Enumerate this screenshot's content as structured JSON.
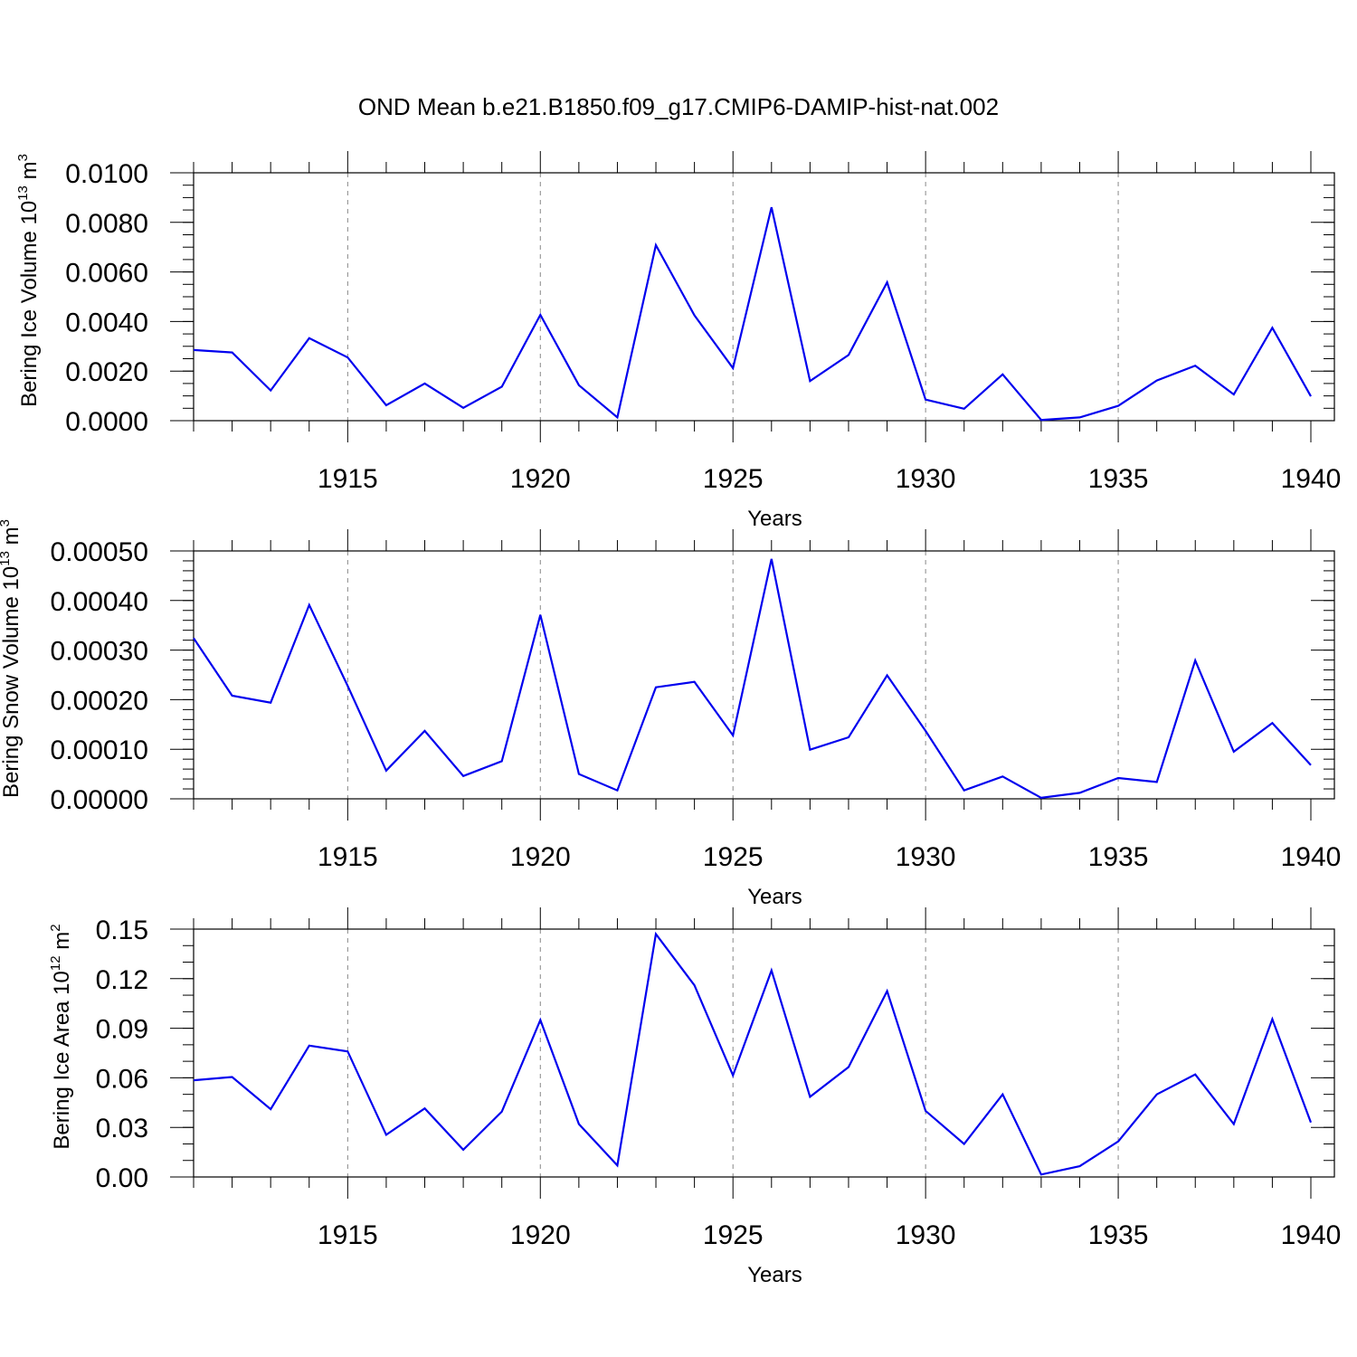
{
  "title": "OND Mean b.e21.B1850.f09_g17.CMIP6-DAMIP-hist-nat.002",
  "chart_data": [
    {
      "type": "line",
      "ylabel_base": "Bering Ice Volume 10",
      "ylabel_exp": "13",
      "ylabel_unit": " m",
      "ylabel_unit_exp": "3",
      "xlabel": "Years",
      "xlim": [
        1911,
        1940
      ],
      "ylim": [
        0,
        0.01
      ],
      "xticks": [
        1915,
        1920,
        1925,
        1930,
        1935,
        1940
      ],
      "xtick_labels": [
        "1915",
        "1920",
        "1925",
        "1930",
        "1935",
        "1940"
      ],
      "yticks": [
        0,
        0.002,
        0.004,
        0.006,
        0.008,
        0.01
      ],
      "ytick_labels": [
        "0.0000",
        "0.0020",
        "0.0040",
        "0.0060",
        "0.0080",
        "0.0100"
      ],
      "yminor_step": 0.0005,
      "grid": "vertical-dashed",
      "x": [
        1911,
        1912,
        1913,
        1914,
        1915,
        1916,
        1917,
        1918,
        1919,
        1920,
        1921,
        1922,
        1923,
        1924,
        1925,
        1926,
        1927,
        1928,
        1929,
        1930,
        1931,
        1932,
        1933,
        1934,
        1935,
        1936,
        1937,
        1938,
        1939,
        1940
      ],
      "values": [
        0.00285,
        0.00275,
        0.00122,
        0.00333,
        0.00255,
        0.00062,
        0.0015,
        0.00052,
        0.00137,
        0.00427,
        0.00143,
        0.00013,
        0.00708,
        0.00425,
        0.00212,
        0.00861,
        0.0016,
        0.00265,
        0.00558,
        0.00085,
        0.00048,
        0.00187,
        3e-05,
        0.00013,
        0.0006,
        0.00162,
        0.00222,
        0.00106,
        0.00375,
        0.00098
      ]
    },
    {
      "type": "line",
      "ylabel_base": "Bering Snow Volume 10",
      "ylabel_exp": "13",
      "ylabel_unit": " m",
      "ylabel_unit_exp": "3",
      "xlabel": "Years",
      "xlim": [
        1911,
        1940
      ],
      "ylim": [
        0,
        0.0005
      ],
      "xticks": [
        1915,
        1920,
        1925,
        1930,
        1935,
        1940
      ],
      "xtick_labels": [
        "1915",
        "1920",
        "1925",
        "1930",
        "1935",
        "1940"
      ],
      "yticks": [
        0,
        0.0001,
        0.0002,
        0.0003,
        0.0004,
        0.0005
      ],
      "ytick_labels": [
        "0.00000",
        "0.00010",
        "0.00020",
        "0.00030",
        "0.00040",
        "0.00050"
      ],
      "yminor_step": 2e-05,
      "grid": "vertical-dashed",
      "x": [
        1911,
        1912,
        1913,
        1914,
        1915,
        1916,
        1917,
        1918,
        1919,
        1920,
        1921,
        1922,
        1923,
        1924,
        1925,
        1926,
        1927,
        1928,
        1929,
        1930,
        1931,
        1932,
        1933,
        1934,
        1935,
        1936,
        1937,
        1938,
        1939,
        1940
      ],
      "values": [
        0.000324,
        0.000208,
        0.000194,
        0.000391,
        0.000228,
        5.7e-05,
        0.000137,
        4.6e-05,
        7.6e-05,
        0.000371,
        5e-05,
        1.7e-05,
        0.000225,
        0.000236,
        0.000128,
        0.000484,
        9.9e-05,
        0.000124,
        0.000249,
        0.000137,
        1.7e-05,
        4.5e-05,
        2e-06,
        1.2e-05,
        4.2e-05,
        3.4e-05,
        0.000279,
        9.5e-05,
        0.000153,
        6.8e-05
      ]
    },
    {
      "type": "line",
      "ylabel_base": "Bering Ice Area 10",
      "ylabel_exp": "12",
      "ylabel_unit": " m",
      "ylabel_unit_exp": "2",
      "xlabel": "Years",
      "xlim": [
        1911,
        1940
      ],
      "ylim": [
        0,
        0.15
      ],
      "xticks": [
        1915,
        1920,
        1925,
        1930,
        1935,
        1940
      ],
      "xtick_labels": [
        "1915",
        "1920",
        "1925",
        "1930",
        "1935",
        "1940"
      ],
      "yticks": [
        0,
        0.03,
        0.06,
        0.09,
        0.12,
        0.15
      ],
      "ytick_labels": [
        "0.00",
        "0.03",
        "0.06",
        "0.09",
        "0.12",
        "0.15"
      ],
      "yminor_step": 0.01,
      "grid": "vertical-dashed",
      "x": [
        1911,
        1912,
        1913,
        1914,
        1915,
        1916,
        1917,
        1918,
        1919,
        1920,
        1921,
        1922,
        1923,
        1924,
        1925,
        1926,
        1927,
        1928,
        1929,
        1930,
        1931,
        1932,
        1933,
        1934,
        1935,
        1936,
        1937,
        1938,
        1939,
        1940
      ],
      "values": [
        0.0585,
        0.0605,
        0.041,
        0.0795,
        0.076,
        0.0255,
        0.0415,
        0.0165,
        0.0395,
        0.095,
        0.032,
        0.007,
        0.147,
        0.116,
        0.0615,
        0.125,
        0.0485,
        0.0665,
        0.1125,
        0.04,
        0.02,
        0.05,
        0.0015,
        0.0065,
        0.0215,
        0.05,
        0.062,
        0.032,
        0.0955,
        0.033
      ]
    }
  ],
  "colors": {
    "series": "#0000ee",
    "axis": "#000000",
    "grid": "#888888"
  }
}
